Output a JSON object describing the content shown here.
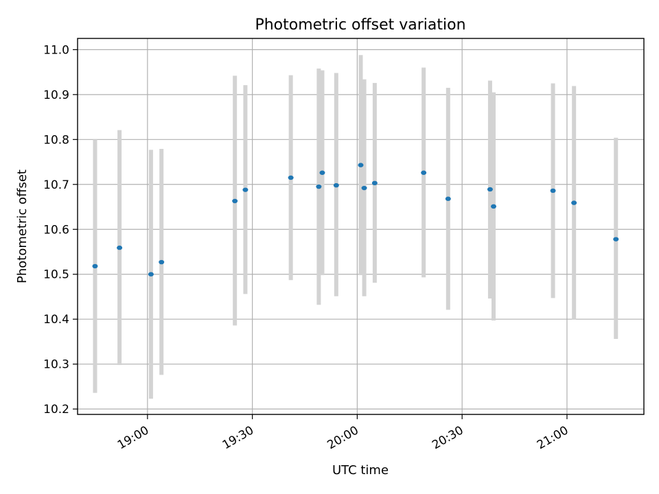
{
  "chart_data": {
    "type": "scatter",
    "title": "Photometric offset variation",
    "xlabel": "UTC time",
    "ylabel": "Photometric offset",
    "x_unit": "UTC time (HH:MM)",
    "xlim": [
      "18:40",
      "21:22"
    ],
    "ylim": [
      10.188,
      11.025
    ],
    "grid": true,
    "xticks": [
      "19:00",
      "19:30",
      "20:00",
      "20:30",
      "21:00"
    ],
    "yticks": [
      10.2,
      10.3,
      10.4,
      10.5,
      10.6,
      10.7,
      10.8,
      10.9,
      11.0
    ],
    "ytick_labels": [
      "10.2",
      "10.3",
      "10.4",
      "10.5",
      "10.6",
      "10.7",
      "10.8",
      "10.9",
      "11.0"
    ],
    "point_color": "#1f77b4",
    "errorbar_color": "#d3d3d3",
    "points": [
      {
        "x": "18:45",
        "y": 10.518,
        "yerr": [
          10.236,
          10.8
        ]
      },
      {
        "x": "18:52",
        "y": 10.559,
        "yerr": [
          10.298,
          10.821
        ]
      },
      {
        "x": "19:01",
        "y": 10.5,
        "yerr": [
          10.223,
          10.777
        ]
      },
      {
        "x": "19:04",
        "y": 10.527,
        "yerr": [
          10.276,
          10.779
        ]
      },
      {
        "x": "19:25",
        "y": 10.663,
        "yerr": [
          10.386,
          10.942
        ]
      },
      {
        "x": "19:28",
        "y": 10.688,
        "yerr": [
          10.456,
          10.921
        ]
      },
      {
        "x": "19:41",
        "y": 10.715,
        "yerr": [
          10.487,
          10.943
        ]
      },
      {
        "x": "19:49",
        "y": 10.695,
        "yerr": [
          10.432,
          10.958
        ]
      },
      {
        "x": "19:50",
        "y": 10.726,
        "yerr": [
          10.498,
          10.954
        ]
      },
      {
        "x": "19:54",
        "y": 10.698,
        "yerr": [
          10.451,
          10.948
        ]
      },
      {
        "x": "20:01",
        "y": 10.743,
        "yerr": [
          10.498,
          10.988
        ]
      },
      {
        "x": "20:02",
        "y": 10.692,
        "yerr": [
          10.451,
          10.934
        ]
      },
      {
        "x": "20:05",
        "y": 10.703,
        "yerr": [
          10.481,
          10.926
        ]
      },
      {
        "x": "20:19",
        "y": 10.726,
        "yerr": [
          10.493,
          10.96
        ]
      },
      {
        "x": "20:26",
        "y": 10.668,
        "yerr": [
          10.421,
          10.915
        ]
      },
      {
        "x": "20:38",
        "y": 10.689,
        "yerr": [
          10.446,
          10.931
        ]
      },
      {
        "x": "20:39",
        "y": 10.651,
        "yerr": [
          10.397,
          10.905
        ]
      },
      {
        "x": "20:56",
        "y": 10.686,
        "yerr": [
          10.447,
          10.925
        ]
      },
      {
        "x": "21:02",
        "y": 10.659,
        "yerr": [
          10.399,
          10.919
        ]
      },
      {
        "x": "21:14",
        "y": 10.578,
        "yerr": [
          10.356,
          10.804
        ]
      }
    ]
  }
}
